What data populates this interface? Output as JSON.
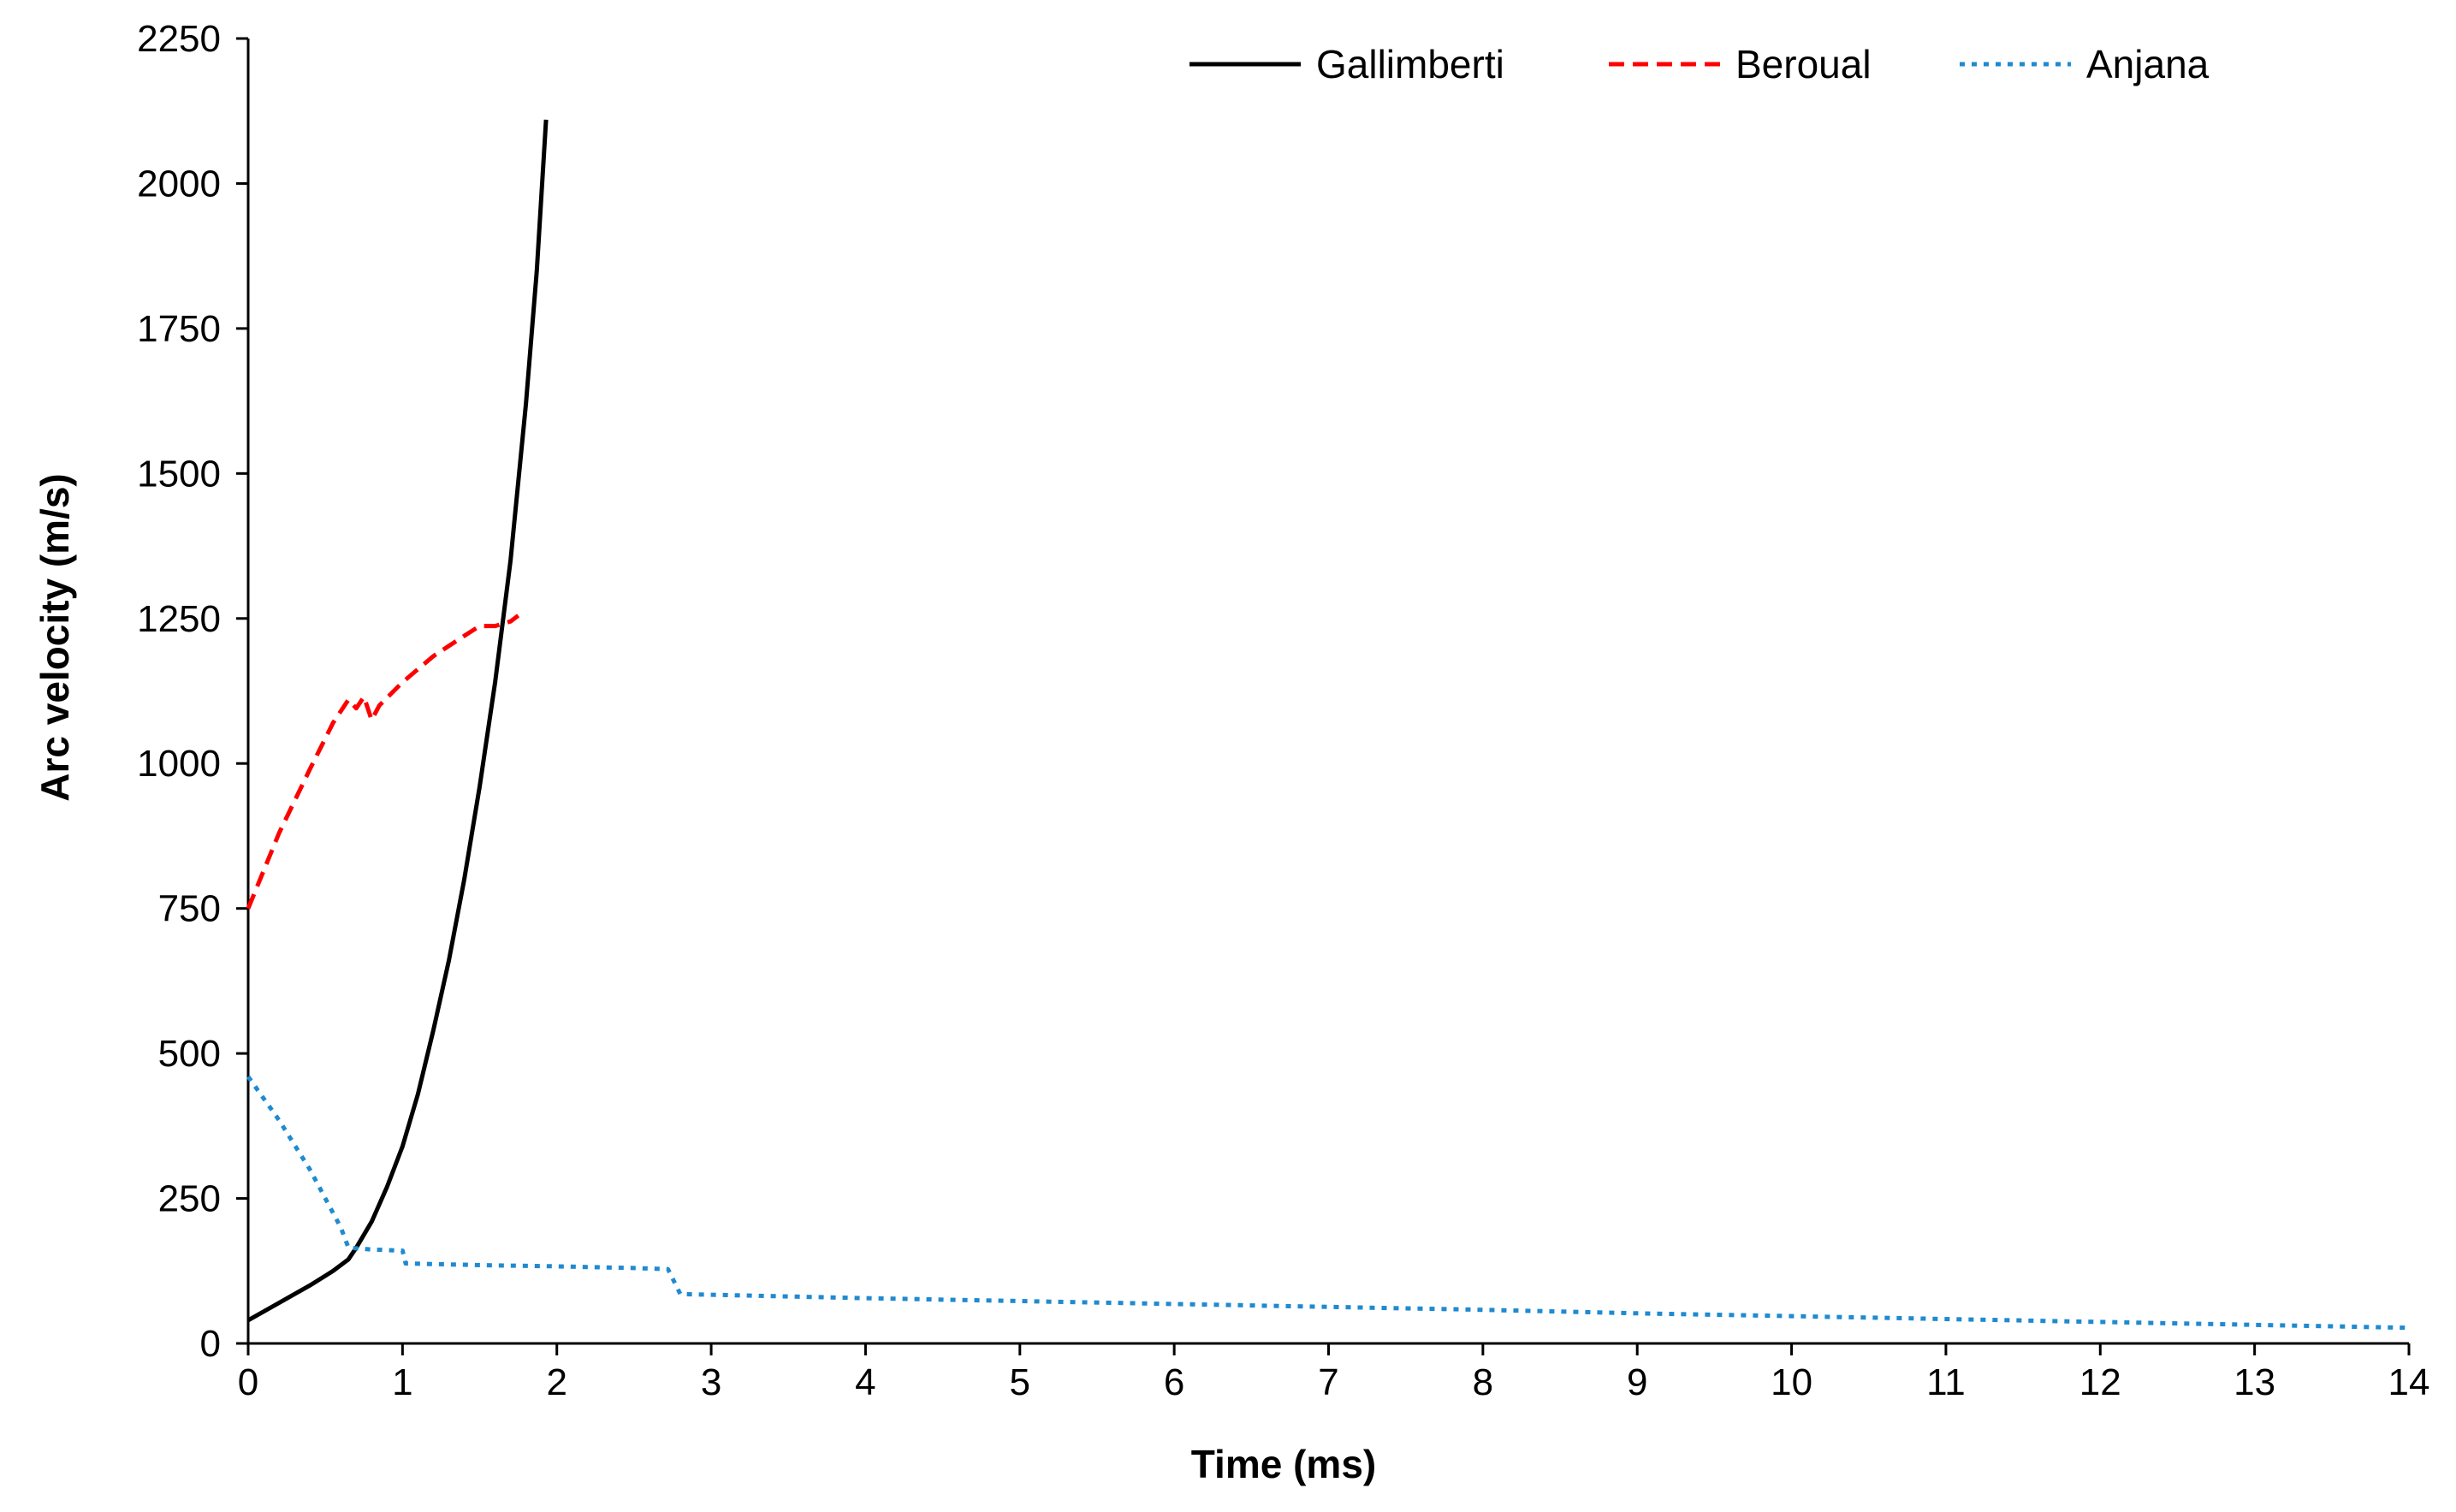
{
  "chart_data": {
    "type": "line",
    "title": "",
    "xlabel": "Time (ms)",
    "ylabel": "Arc velocity (m/s)",
    "xlim": [
      0,
      14
    ],
    "ylim": [
      0,
      2250
    ],
    "x_ticks": [
      0,
      1,
      2,
      3,
      4,
      5,
      6,
      7,
      8,
      9,
      10,
      11,
      12,
      13,
      14
    ],
    "y_ticks": [
      0,
      250,
      500,
      750,
      1000,
      1250,
      1500,
      1750,
      2000,
      2250
    ],
    "grid": false,
    "legend_position": "top-right",
    "series": [
      {
        "name": "Gallimberti",
        "color": "#000000",
        "dash": "solid",
        "points": [
          [
            0,
            40
          ],
          [
            0.2,
            70
          ],
          [
            0.4,
            100
          ],
          [
            0.55,
            125
          ],
          [
            0.65,
            145
          ],
          [
            0.7,
            165
          ],
          [
            0.8,
            210
          ],
          [
            0.9,
            270
          ],
          [
            1.0,
            340
          ],
          [
            1.1,
            430
          ],
          [
            1.2,
            540
          ],
          [
            1.3,
            660
          ],
          [
            1.4,
            800
          ],
          [
            1.5,
            960
          ],
          [
            1.6,
            1140
          ],
          [
            1.7,
            1350
          ],
          [
            1.8,
            1620
          ],
          [
            1.87,
            1850
          ],
          [
            1.93,
            2110
          ]
        ]
      },
      {
        "name": "Beroual",
        "color": "#ff0000",
        "dash": "dashed",
        "points": [
          [
            0,
            750
          ],
          [
            0.2,
            880
          ],
          [
            0.4,
            990
          ],
          [
            0.55,
            1070
          ],
          [
            0.65,
            1110
          ],
          [
            0.7,
            1095
          ],
          [
            0.75,
            1115
          ],
          [
            0.8,
            1075
          ],
          [
            0.85,
            1100
          ],
          [
            1.0,
            1140
          ],
          [
            1.2,
            1185
          ],
          [
            1.4,
            1220
          ],
          [
            1.5,
            1237
          ],
          [
            1.6,
            1237
          ],
          [
            1.7,
            1245
          ],
          [
            1.75,
            1255
          ]
        ]
      },
      {
        "name": "Anjana",
        "color": "#1f8ad0",
        "dash": "dotted",
        "points": [
          [
            0,
            460
          ],
          [
            0.2,
            385
          ],
          [
            0.4,
            300
          ],
          [
            0.6,
            200
          ],
          [
            0.65,
            165
          ],
          [
            0.8,
            162
          ],
          [
            1.0,
            160
          ],
          [
            1.02,
            138
          ],
          [
            1.5,
            135
          ],
          [
            2.0,
            133
          ],
          [
            2.5,
            130
          ],
          [
            2.72,
            128
          ],
          [
            2.8,
            85
          ],
          [
            3,
            84
          ],
          [
            4,
            78
          ],
          [
            5,
            73
          ],
          [
            6,
            68
          ],
          [
            7,
            63
          ],
          [
            8,
            58
          ],
          [
            9,
            52
          ],
          [
            10,
            47
          ],
          [
            11,
            42
          ],
          [
            12,
            37
          ],
          [
            13,
            32
          ],
          [
            14,
            27
          ]
        ]
      }
    ]
  }
}
